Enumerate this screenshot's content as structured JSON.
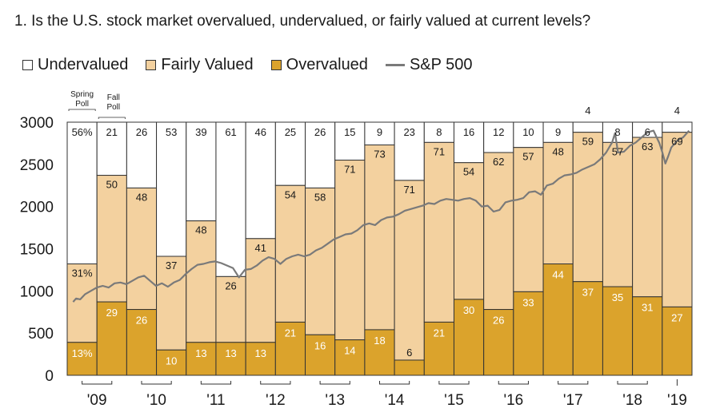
{
  "question": "1. Is the U.S. stock market overvalued, undervalued, or fairly valued at current levels?",
  "legend": {
    "undervalued": "Undervalued",
    "fairly_valued": "Fairly Valued",
    "overvalued": "Overvalued",
    "sp500": "S&P 500"
  },
  "colors": {
    "undervalued": "#ffffff",
    "fairly_valued": "#f3d19f",
    "overvalued": "#dba32c",
    "sp500": "#7a7a7a"
  },
  "annotations": {
    "spring": "Spring Poll",
    "fall": "Fall Poll"
  },
  "chart_data": {
    "type": "bar",
    "stacked": true,
    "y_axis": {
      "ticks": [
        0,
        500,
        1000,
        1500,
        2000,
        2500,
        3000
      ],
      "ylim": [
        0,
        3000
      ]
    },
    "year_labels": [
      "'09",
      "'10",
      "'11",
      "'12",
      "'13",
      "'14",
      "'15",
      "'16",
      "'17",
      "'18",
      "'19"
    ],
    "series": [
      {
        "name": "Overvalued",
        "values": [
          13,
          29,
          26,
          10,
          13,
          13,
          13,
          21,
          16,
          14,
          18,
          6,
          21,
          30,
          26,
          33,
          44,
          37,
          35,
          31,
          27
        ]
      },
      {
        "name": "Fairly Valued",
        "values": [
          31,
          50,
          48,
          37,
          48,
          26,
          41,
          54,
          58,
          71,
          73,
          71,
          71,
          54,
          62,
          57,
          48,
          59,
          57,
          63,
          69
        ]
      },
      {
        "name": "Undervalued",
        "values": [
          56,
          21,
          26,
          53,
          39,
          61,
          46,
          25,
          26,
          15,
          9,
          23,
          8,
          16,
          12,
          10,
          9,
          4,
          8,
          6,
          4
        ]
      }
    ],
    "value_labels": {
      "overvalued": [
        "13%",
        "29",
        "26",
        "10",
        "13",
        "13",
        "13",
        "21",
        "16",
        "14",
        "18",
        "6",
        "21",
        "30",
        "26",
        "33",
        "44",
        "37",
        "35",
        "31",
        "27"
      ],
      "fairly": [
        "31%",
        "50",
        "48",
        "37",
        "48",
        "26",
        "41",
        "54",
        "58",
        "71",
        "73",
        "71",
        "71",
        "54",
        "62",
        "57",
        "48",
        "59",
        "57",
        "63",
        "69"
      ],
      "undervalued": [
        "56%",
        "21",
        "26",
        "53",
        "39",
        "61",
        "46",
        "25",
        "26",
        "15",
        "9",
        "23",
        "8",
        "16",
        "12",
        "10",
        "9",
        "4",
        "8",
        "6",
        "4"
      ]
    },
    "sp500": [
      {
        "x": 2009.0,
        "y": 870
      },
      {
        "x": 2009.05,
        "y": 910
      },
      {
        "x": 2009.12,
        "y": 900
      },
      {
        "x": 2009.2,
        "y": 960
      },
      {
        "x": 2009.3,
        "y": 1000
      },
      {
        "x": 2009.4,
        "y": 1040
      },
      {
        "x": 2009.5,
        "y": 1060
      },
      {
        "x": 2009.6,
        "y": 1040
      },
      {
        "x": 2009.7,
        "y": 1090
      },
      {
        "x": 2009.8,
        "y": 1100
      },
      {
        "x": 2009.9,
        "y": 1080
      },
      {
        "x": 2010.0,
        "y": 1120
      },
      {
        "x": 2010.1,
        "y": 1160
      },
      {
        "x": 2010.2,
        "y": 1180
      },
      {
        "x": 2010.3,
        "y": 1120
      },
      {
        "x": 2010.4,
        "y": 1060
      },
      {
        "x": 2010.5,
        "y": 1090
      },
      {
        "x": 2010.6,
        "y": 1050
      },
      {
        "x": 2010.7,
        "y": 1100
      },
      {
        "x": 2010.8,
        "y": 1130
      },
      {
        "x": 2010.9,
        "y": 1200
      },
      {
        "x": 2011.0,
        "y": 1260
      },
      {
        "x": 2011.1,
        "y": 1310
      },
      {
        "x": 2011.2,
        "y": 1320
      },
      {
        "x": 2011.3,
        "y": 1340
      },
      {
        "x": 2011.4,
        "y": 1350
      },
      {
        "x": 2011.5,
        "y": 1330
      },
      {
        "x": 2011.6,
        "y": 1300
      },
      {
        "x": 2011.7,
        "y": 1270
      },
      {
        "x": 2011.8,
        "y": 1160
      },
      {
        "x": 2011.9,
        "y": 1250
      },
      {
        "x": 2012.0,
        "y": 1260
      },
      {
        "x": 2012.1,
        "y": 1300
      },
      {
        "x": 2012.2,
        "y": 1360
      },
      {
        "x": 2012.3,
        "y": 1400
      },
      {
        "x": 2012.4,
        "y": 1380
      },
      {
        "x": 2012.5,
        "y": 1320
      },
      {
        "x": 2012.6,
        "y": 1380
      },
      {
        "x": 2012.7,
        "y": 1410
      },
      {
        "x": 2012.8,
        "y": 1430
      },
      {
        "x": 2012.9,
        "y": 1410
      },
      {
        "x": 2013.0,
        "y": 1430
      },
      {
        "x": 2013.1,
        "y": 1480
      },
      {
        "x": 2013.2,
        "y": 1510
      },
      {
        "x": 2013.3,
        "y": 1560
      },
      {
        "x": 2013.4,
        "y": 1610
      },
      {
        "x": 2013.5,
        "y": 1640
      },
      {
        "x": 2013.6,
        "y": 1670
      },
      {
        "x": 2013.7,
        "y": 1680
      },
      {
        "x": 2013.8,
        "y": 1720
      },
      {
        "x": 2013.9,
        "y": 1780
      },
      {
        "x": 2014.0,
        "y": 1800
      },
      {
        "x": 2014.1,
        "y": 1780
      },
      {
        "x": 2014.2,
        "y": 1840
      },
      {
        "x": 2014.3,
        "y": 1870
      },
      {
        "x": 2014.4,
        "y": 1880
      },
      {
        "x": 2014.5,
        "y": 1910
      },
      {
        "x": 2014.6,
        "y": 1950
      },
      {
        "x": 2014.7,
        "y": 1970
      },
      {
        "x": 2014.8,
        "y": 1990
      },
      {
        "x": 2014.9,
        "y": 2010
      },
      {
        "x": 2015.0,
        "y": 2040
      },
      {
        "x": 2015.1,
        "y": 2030
      },
      {
        "x": 2015.2,
        "y": 2070
      },
      {
        "x": 2015.3,
        "y": 2090
      },
      {
        "x": 2015.4,
        "y": 2080
      },
      {
        "x": 2015.5,
        "y": 2070
      },
      {
        "x": 2015.6,
        "y": 2090
      },
      {
        "x": 2015.7,
        "y": 2100
      },
      {
        "x": 2015.8,
        "y": 2070
      },
      {
        "x": 2015.9,
        "y": 2000
      },
      {
        "x": 2016.0,
        "y": 2010
      },
      {
        "x": 2016.1,
        "y": 1940
      },
      {
        "x": 2016.2,
        "y": 1960
      },
      {
        "x": 2016.3,
        "y": 2050
      },
      {
        "x": 2016.4,
        "y": 2070
      },
      {
        "x": 2016.5,
        "y": 2080
      },
      {
        "x": 2016.6,
        "y": 2100
      },
      {
        "x": 2016.7,
        "y": 2170
      },
      {
        "x": 2016.8,
        "y": 2180
      },
      {
        "x": 2016.9,
        "y": 2140
      },
      {
        "x": 2017.0,
        "y": 2250
      },
      {
        "x": 2017.1,
        "y": 2270
      },
      {
        "x": 2017.2,
        "y": 2330
      },
      {
        "x": 2017.3,
        "y": 2370
      },
      {
        "x": 2017.4,
        "y": 2380
      },
      {
        "x": 2017.5,
        "y": 2400
      },
      {
        "x": 2017.6,
        "y": 2440
      },
      {
        "x": 2017.7,
        "y": 2470
      },
      {
        "x": 2017.8,
        "y": 2500
      },
      {
        "x": 2017.9,
        "y": 2560
      },
      {
        "x": 2018.0,
        "y": 2640
      },
      {
        "x": 2018.1,
        "y": 2760
      },
      {
        "x": 2018.15,
        "y": 2870
      },
      {
        "x": 2018.2,
        "y": 2640
      },
      {
        "x": 2018.3,
        "y": 2650
      },
      {
        "x": 2018.4,
        "y": 2720
      },
      {
        "x": 2018.5,
        "y": 2760
      },
      {
        "x": 2018.6,
        "y": 2820
      },
      {
        "x": 2018.7,
        "y": 2880
      },
      {
        "x": 2018.8,
        "y": 2900
      },
      {
        "x": 2018.9,
        "y": 2750
      },
      {
        "x": 2018.95,
        "y": 2640
      },
      {
        "x": 2019.0,
        "y": 2510
      },
      {
        "x": 2019.05,
        "y": 2600
      },
      {
        "x": 2019.1,
        "y": 2700
      },
      {
        "x": 2019.2,
        "y": 2780
      },
      {
        "x": 2019.3,
        "y": 2820
      },
      {
        "x": 2019.4,
        "y": 2900
      }
    ],
    "sp500_range": {
      "x": [
        2008.9,
        2019.45
      ],
      "y": [
        0,
        3000
      ]
    }
  }
}
